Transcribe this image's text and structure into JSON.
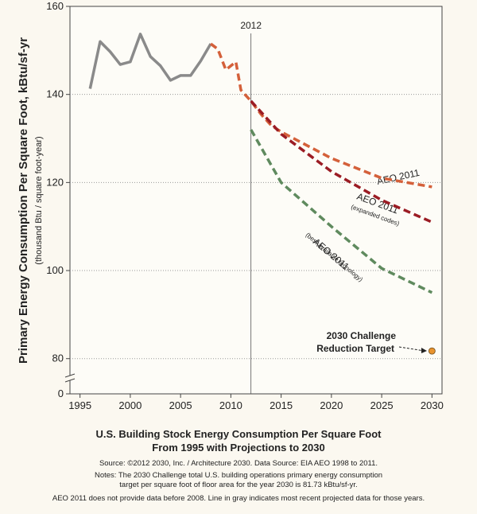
{
  "chart_data": {
    "type": "line",
    "ylabel": "Primary Energy Consumption Per Square Foot, kBtu/sf-yr",
    "ylabel_sub": "(thousand Btu / square foot-year)",
    "xlim": [
      1994,
      2031
    ],
    "xticks": [
      1995,
      2000,
      2005,
      2010,
      2015,
      2020,
      2025,
      2030
    ],
    "ylim": [
      72,
      160
    ],
    "yticks": [
      0,
      80,
      100,
      120,
      140,
      160
    ],
    "axis_break": true,
    "grid": true,
    "marker_line": {
      "x": 2012,
      "label": "2012"
    },
    "series": [
      {
        "name": "Most recent projected data",
        "color": "#8a8a8a",
        "style": "solid",
        "x": [
          1996,
          1997,
          1998,
          1999,
          2000,
          2001,
          2002,
          2003,
          2004,
          2005,
          2006,
          2007,
          2008
        ],
        "values": [
          141.3,
          152,
          149.7,
          146.8,
          147.4,
          153.7,
          148.6,
          146.5,
          143.2,
          144.3,
          144.3,
          147.6,
          151.5
        ]
      },
      {
        "name": "AEO 2011",
        "color": "#d4603a",
        "style": "dashed",
        "x": [
          2008,
          2008.7,
          2009.5,
          2010.5,
          2011,
          2012,
          2013,
          2014,
          2015,
          2020,
          2025,
          2030
        ],
        "values": [
          151.5,
          150.3,
          145.6,
          147.4,
          141,
          138.5,
          135.5,
          133,
          131.5,
          125.5,
          121,
          119
        ]
      },
      {
        "name": "AEO 2011 (expanded codes)",
        "color": "#9b1c24",
        "style": "dashed",
        "x": [
          2012,
          2015,
          2020,
          2025,
          2030
        ],
        "values": [
          138.5,
          131,
          122.5,
          116,
          111
        ]
      },
      {
        "name": "AEO 2011 (best available tecnology)",
        "color": "#5f8a5e",
        "style": "dashed",
        "x": [
          2012,
          2015,
          2020,
          2025,
          2030
        ],
        "values": [
          132,
          120,
          110,
          100.5,
          95
        ]
      },
      {
        "name": "2030 Challenge Reduction Target",
        "color": "#e8932e",
        "style": "point",
        "x": [
          2030
        ],
        "values": [
          81.73
        ]
      }
    ],
    "annotations": [
      "AEO 2011",
      "AEO 2011",
      "(expanded codes)",
      "AEO 2011",
      "(best available tecnology)",
      "2030 Challenge",
      "Reduction Target"
    ],
    "caption": [
      "U.S. Building Stock Energy Consumption Per Square Foot",
      "From 1995 with Projections to 2030"
    ],
    "notes": [
      "Source: ©2012 2030, Inc. / Architecture 2030. Data Source: EIA AEO 1998 to 2011.",
      "Notes: The 2030 Challenge total U.S. building operations primary energy consumption",
      "target per square foot of floor area for the year 2030 is 81.73 kBtu/sf-yr.",
      "AEO 2011 does not provide data before 2008. Line in gray indicates most recent projected data for those years."
    ]
  }
}
